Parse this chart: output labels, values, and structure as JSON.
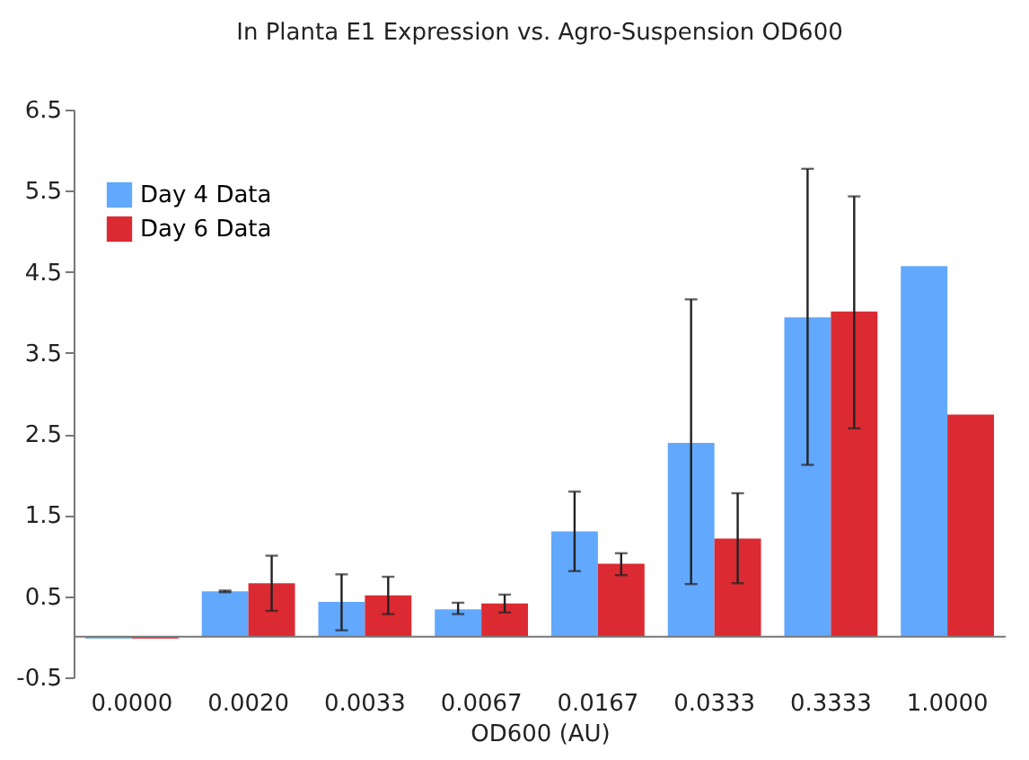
{
  "chart_data": {
    "type": "bar",
    "title": "In Planta E1 Expression vs. Agro-Suspension OD600",
    "xlabel": "OD600 (AU)",
    "categories": [
      "0.0000",
      "0.0020",
      "0.0033",
      "0.0067",
      "0.0167",
      "0.0333",
      "0.3333",
      "1.0000"
    ],
    "series": [
      {
        "name": "Day 4 Data",
        "color": "#62a8fd",
        "values": [
          -0.02,
          0.56,
          0.43,
          0.34,
          1.3,
          2.39,
          3.94,
          4.57
        ],
        "errors": [
          null,
          0.01,
          [
            0.08,
            0.77
          ],
          [
            0.28,
            0.42
          ],
          [
            0.81,
            1.79
          ],
          [
            0.65,
            4.16
          ],
          [
            2.12,
            5.77
          ],
          null
        ]
      },
      {
        "name": "Day 6 Data",
        "color": "#dc2a32",
        "values": [
          -0.02,
          0.66,
          0.51,
          0.41,
          0.9,
          1.21,
          4.01,
          2.74
        ],
        "errors": [
          null,
          [
            0.32,
            1.0
          ],
          [
            0.28,
            0.74
          ],
          [
            0.3,
            0.52
          ],
          [
            0.76,
            1.03
          ],
          [
            0.66,
            1.77
          ],
          [
            2.57,
            5.43
          ],
          null
        ]
      }
    ],
    "ylim": [
      -0.5,
      6.5
    ],
    "yticks": [
      -0.5,
      0.5,
      1.5,
      2.5,
      3.5,
      4.5,
      5.5,
      6.5
    ],
    "grid": false,
    "legend": "top left"
  }
}
